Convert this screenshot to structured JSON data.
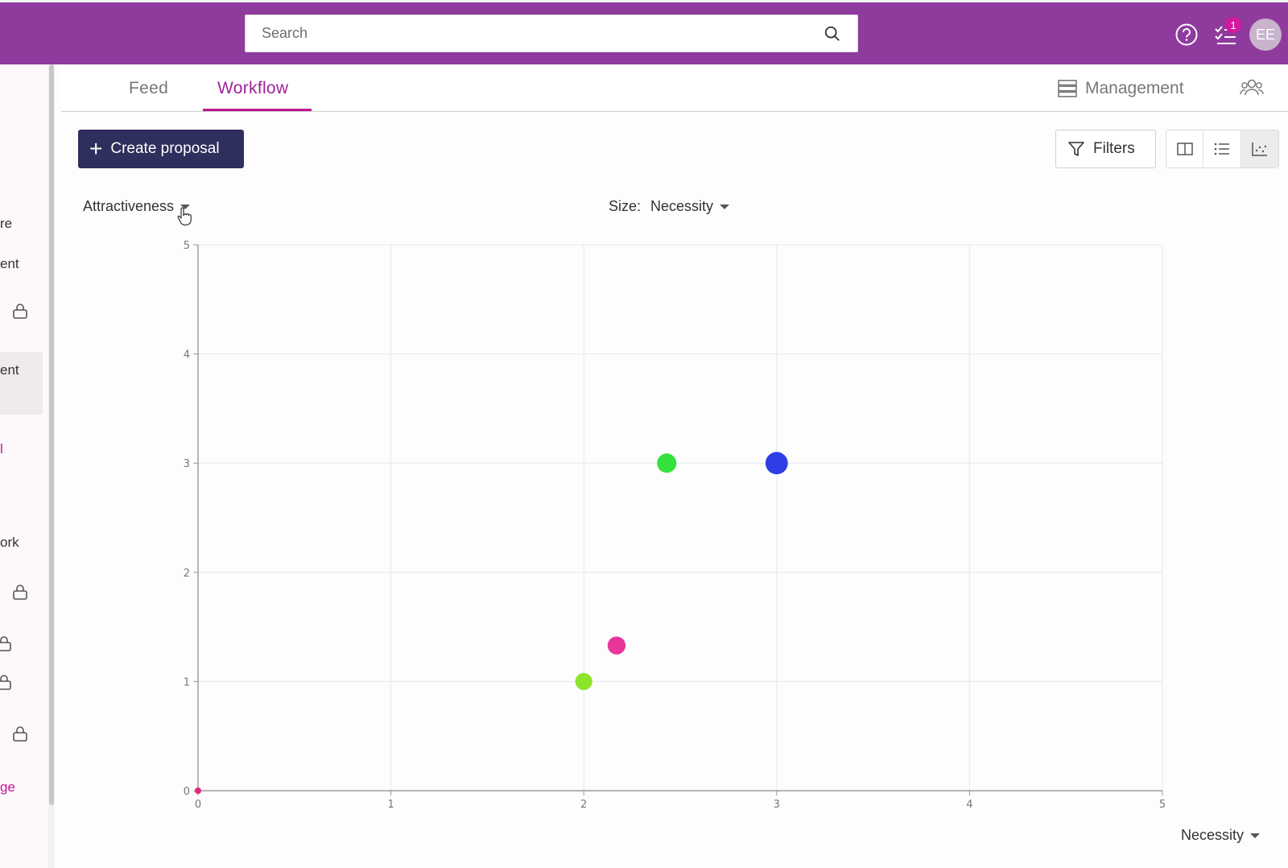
{
  "search": {
    "placeholder": "Search"
  },
  "notifications": {
    "count": "1"
  },
  "user": {
    "initials": "EE"
  },
  "sidebar": {
    "items": [
      {
        "label": "re",
        "locked": false
      },
      {
        "label": "ent",
        "locked": false
      },
      {
        "label": "",
        "locked": true
      },
      {
        "label": "ent",
        "locked": false
      },
      {
        "label": "l",
        "locked": false
      },
      {
        "label": "ork",
        "locked": false
      },
      {
        "label": "",
        "locked": true
      },
      {
        "label": "",
        "locked": true
      },
      {
        "label": "",
        "locked": true
      },
      {
        "label": "",
        "locked": true
      },
      {
        "label": "ge",
        "locked": false
      }
    ]
  },
  "tabs": {
    "feed": "Feed",
    "workflow": "Workflow",
    "management": "Management"
  },
  "toolbar": {
    "create_label": "Create proposal",
    "filters_label": "Filters"
  },
  "chart_controls": {
    "y_axis": "Attractiveness",
    "size_label": "Size:",
    "size_value": "Necessity",
    "x_axis": "Necessity"
  },
  "chart_data": {
    "type": "scatter",
    "xlim": [
      0,
      5
    ],
    "ylim": [
      0,
      5
    ],
    "xticks": [
      "0",
      "1",
      "2",
      "3",
      "4",
      "5"
    ],
    "yticks": [
      "0",
      "1",
      "2",
      "3",
      "4",
      "5"
    ],
    "grid": true,
    "points": [
      {
        "x": 0.0,
        "y": 0.0,
        "size": 0,
        "color": "#e0277f"
      },
      {
        "x": 2.0,
        "y": 1.0,
        "size": 2,
        "color": "#8ce52c"
      },
      {
        "x": 2.17,
        "y": 1.33,
        "size": 2.17,
        "color": "#e8369b"
      },
      {
        "x": 2.43,
        "y": 3.0,
        "size": 2.43,
        "color": "#33e23a"
      },
      {
        "x": 3.0,
        "y": 3.0,
        "size": 3,
        "color": "#2e3de6"
      }
    ]
  },
  "colors": {
    "topbar": "#8f3a9d",
    "accent": "#c0168f",
    "primary_button": "#2e2f5c"
  }
}
